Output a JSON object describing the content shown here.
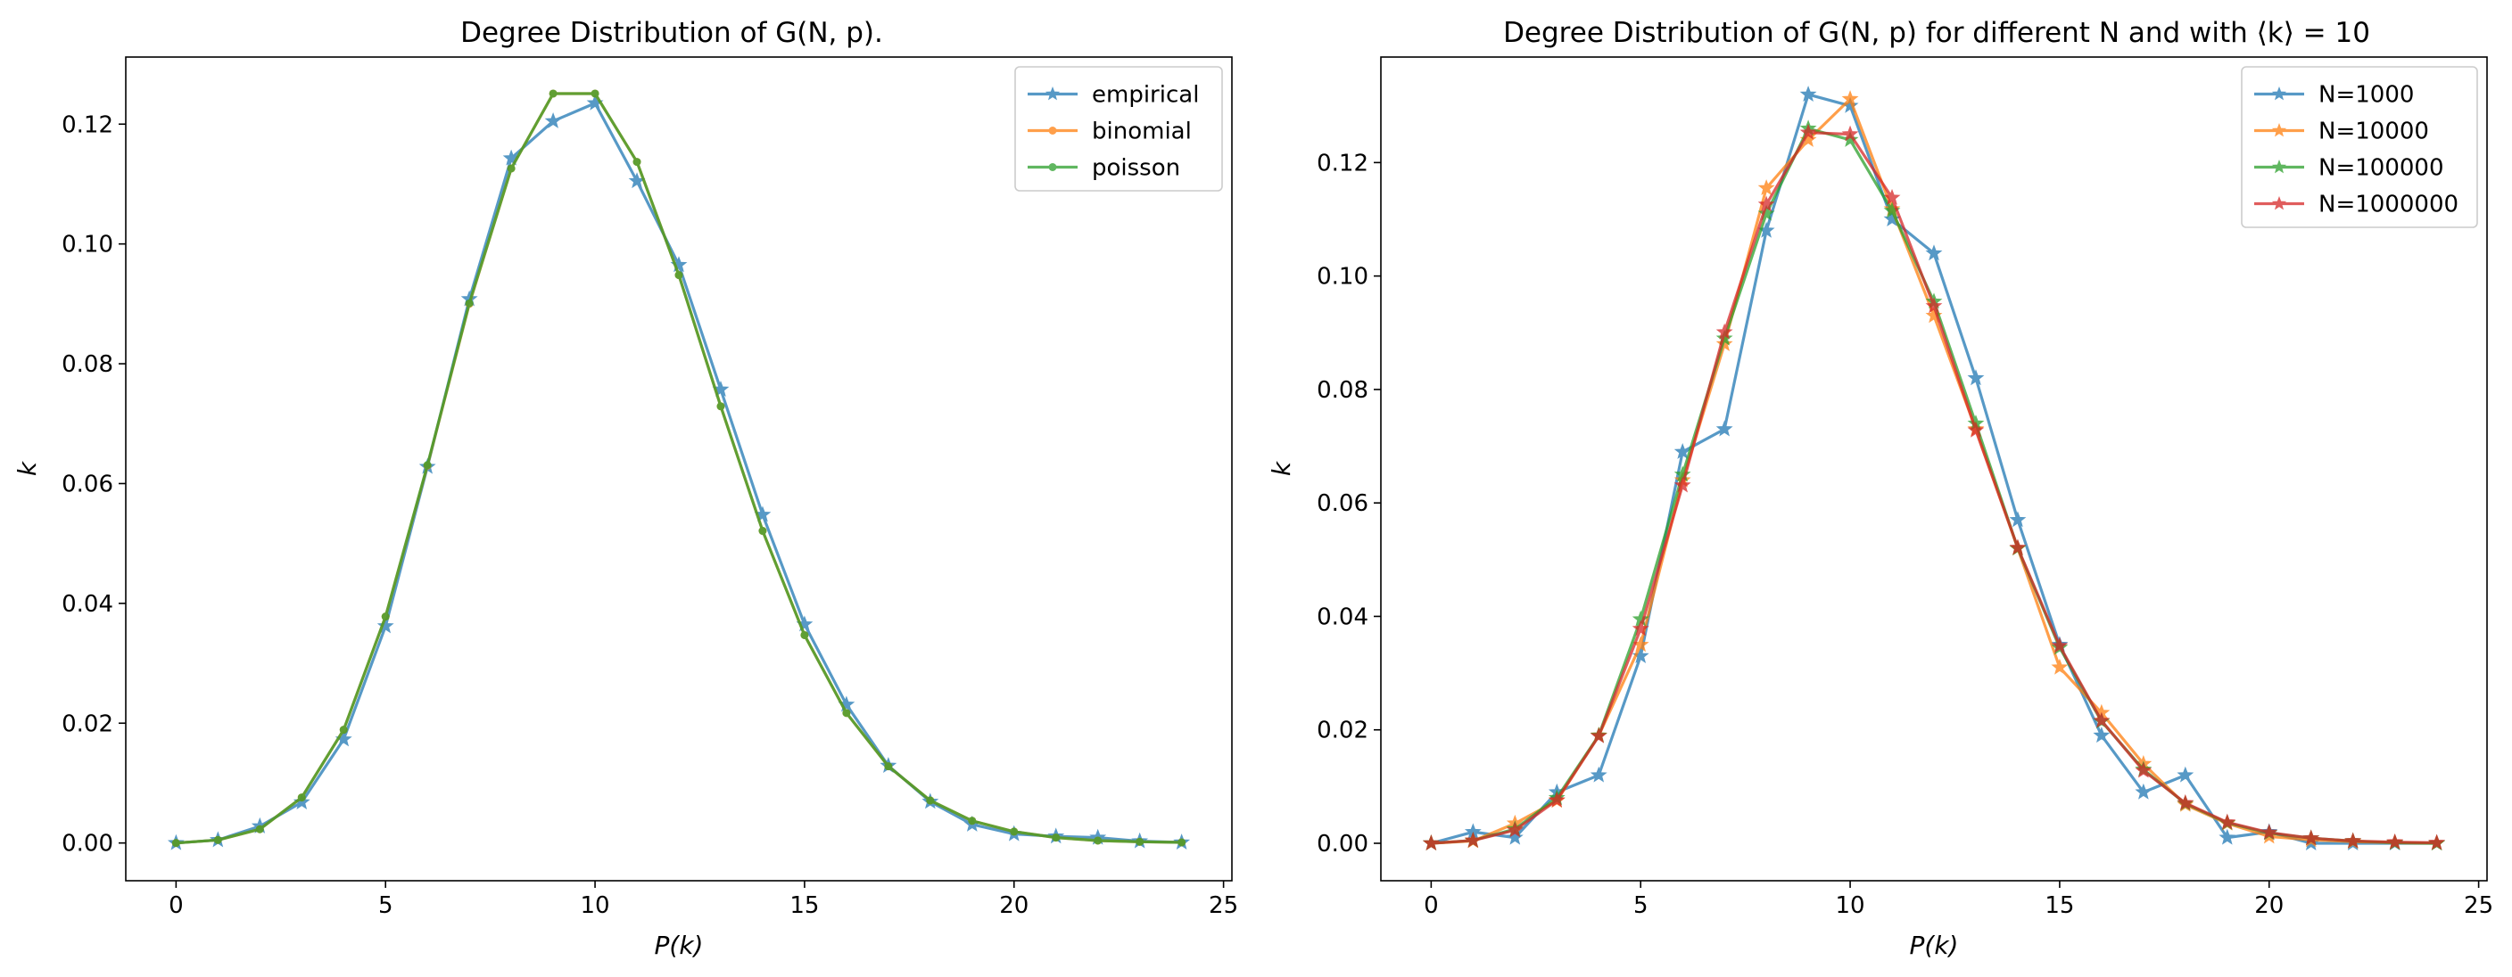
{
  "chart_data": [
    {
      "type": "line",
      "title": "Degree Distribution of G(N, p).",
      "xlabel": "P(k)",
      "ylabel": "k",
      "xlim": [
        -1.2,
        25.2
      ],
      "ylim": [
        -0.0063,
        0.1312
      ],
      "xticks": [
        0,
        5,
        10,
        15,
        20,
        25
      ],
      "yticks": [
        0.0,
        0.02,
        0.04,
        0.06,
        0.08,
        0.1,
        0.12
      ],
      "legend_position": "top-right",
      "x": [
        0,
        1,
        2,
        3,
        4,
        5,
        6,
        7,
        8,
        9,
        10,
        11,
        12,
        13,
        14,
        15,
        16,
        17,
        18,
        19,
        20,
        21,
        22,
        23,
        24
      ],
      "series": [
        {
          "name": "empirical",
          "color": "#1f77b4",
          "marker": "star",
          "values": [
            0,
            0.0005,
            0.0028,
            0.0068,
            0.0173,
            0.0362,
            0.0628,
            0.0908,
            0.1143,
            0.1205,
            0.1235,
            0.1105,
            0.0965,
            0.0757,
            0.0548,
            0.0365,
            0.0231,
            0.0129,
            0.0069,
            0.0031,
            0.0015,
            0.0011,
            0.0009,
            0.0003,
            0.0001
          ]
        },
        {
          "name": "binomial",
          "color": "#ff7f0e",
          "marker": "dot",
          "values": [
            0.0,
            0.0005,
            0.0023,
            0.0076,
            0.0189,
            0.0378,
            0.063,
            0.09,
            0.1126,
            0.1251,
            0.1251,
            0.1137,
            0.0948,
            0.0729,
            0.0521,
            0.0347,
            0.0217,
            0.0128,
            0.0071,
            0.0037,
            0.0019,
            0.0009,
            0.0004,
            0.0002,
            0.0001
          ]
        },
        {
          "name": "poisson",
          "color": "#2ca02c",
          "marker": "dot",
          "values": [
            0.0,
            0.0005,
            0.0023,
            0.0076,
            0.0189,
            0.0378,
            0.0631,
            0.0901,
            0.1126,
            0.1251,
            0.1251,
            0.1137,
            0.0948,
            0.0729,
            0.0521,
            0.0347,
            0.0217,
            0.0128,
            0.0071,
            0.0037,
            0.0019,
            0.0009,
            0.0004,
            0.0002,
            0.0001
          ]
        }
      ]
    },
    {
      "type": "line",
      "title": "Degree Distribution of G(N, p) for different N and with ⟨k⟩ = 10",
      "xlabel": "P(k)",
      "ylabel": "k",
      "xlim": [
        -1.2,
        25.2
      ],
      "ylim": [
        -0.0066,
        0.1386
      ],
      "xticks": [
        0,
        5,
        10,
        15,
        20,
        25
      ],
      "yticks": [
        0.0,
        0.02,
        0.04,
        0.06,
        0.08,
        0.1,
        0.12
      ],
      "legend_position": "top-right",
      "x": [
        0,
        1,
        2,
        3,
        4,
        5,
        6,
        7,
        8,
        9,
        10,
        11,
        12,
        13,
        14,
        15,
        16,
        17,
        18,
        19,
        20,
        21,
        22,
        23,
        24
      ],
      "series": [
        {
          "name": "N=1000",
          "color": "#1f77b4",
          "marker": "star",
          "values": [
            0,
            0.002,
            0.001,
            0.009,
            0.012,
            0.033,
            0.069,
            0.073,
            0.108,
            0.132,
            0.13,
            0.11,
            0.104,
            0.082,
            0.057,
            0.035,
            0.019,
            0.009,
            0.012,
            0.001,
            0.002,
            0.0,
            0.0,
            0.0,
            0.0
          ]
        },
        {
          "name": "N=10000",
          "color": "#ff7f0e",
          "marker": "star",
          "values": [
            0,
            0.0004,
            0.0035,
            0.0075,
            0.019,
            0.035,
            0.064,
            0.088,
            0.1155,
            0.124,
            0.1312,
            0.1118,
            0.093,
            0.073,
            0.052,
            0.031,
            0.023,
            0.014,
            0.0068,
            0.0035,
            0.0012,
            0.0006,
            0.0003,
            0.0001,
            0.0
          ]
        },
        {
          "name": "N=100000",
          "color": "#2ca02c",
          "marker": "star",
          "values": [
            0,
            0.0005,
            0.0025,
            0.008,
            0.019,
            0.0395,
            0.065,
            0.089,
            0.111,
            0.126,
            0.124,
            0.1115,
            0.0955,
            0.074,
            0.052,
            0.0345,
            0.0215,
            0.013,
            0.007,
            0.0036,
            0.0018,
            0.0009,
            0.0004,
            0.0001,
            0.0
          ]
        },
        {
          "name": "N=1000000",
          "color": "#d62728",
          "marker": "star",
          "values": [
            0,
            0.0005,
            0.0023,
            0.0076,
            0.0189,
            0.0378,
            0.0631,
            0.0901,
            0.1126,
            0.1253,
            0.125,
            0.1138,
            0.0947,
            0.0728,
            0.0521,
            0.0348,
            0.0216,
            0.0128,
            0.0071,
            0.0037,
            0.0019,
            0.0009,
            0.0004,
            0.0002,
            0.0001
          ]
        }
      ]
    }
  ]
}
